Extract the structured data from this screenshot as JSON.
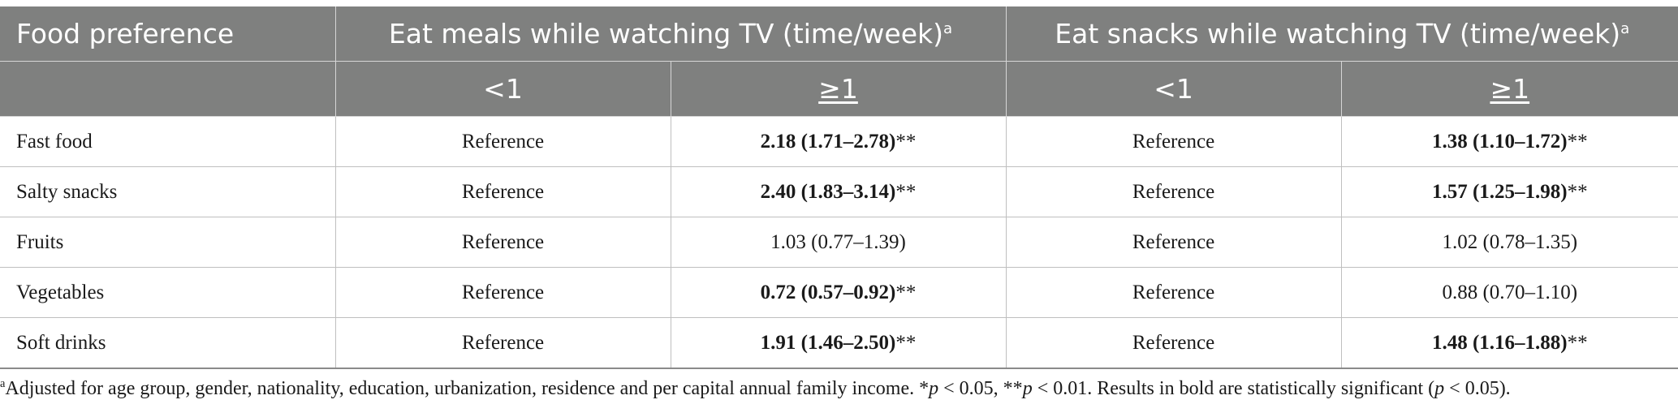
{
  "header": {
    "col0": "Food preference",
    "group1": "Eat meals while watching TV (time/week)",
    "group2": "Eat snacks while watching TV (time/week)",
    "group_sup": "a",
    "sub_lt": "<1",
    "sub_ge": "≥1"
  },
  "rows": [
    {
      "label": "Fast food",
      "meals_lt": "Reference",
      "meals_ge": {
        "value": "2.18 (1.71–2.78)",
        "stars": "**",
        "bold": true
      },
      "snacks_lt": "Reference",
      "snacks_ge": {
        "value": "1.38 (1.10–1.72)",
        "stars": "**",
        "bold": true
      }
    },
    {
      "label": "Salty snacks",
      "meals_lt": "Reference",
      "meals_ge": {
        "value": "2.40 (1.83–3.14)",
        "stars": "**",
        "bold": true
      },
      "snacks_lt": "Reference",
      "snacks_ge": {
        "value": "1.57 (1.25–1.98)",
        "stars": "**",
        "bold": true
      }
    },
    {
      "label": "Fruits",
      "meals_lt": "Reference",
      "meals_ge": {
        "value": "1.03 (0.77–1.39)",
        "stars": "",
        "bold": false
      },
      "snacks_lt": "Reference",
      "snacks_ge": {
        "value": "1.02 (0.78–1.35)",
        "stars": "",
        "bold": false
      }
    },
    {
      "label": "Vegetables",
      "meals_lt": "Reference",
      "meals_ge": {
        "value": "0.72 (0.57–0.92)",
        "stars": "**",
        "bold": true
      },
      "snacks_lt": "Reference",
      "snacks_ge": {
        "value": "0.88 (0.70–1.10)",
        "stars": "",
        "bold": false
      }
    },
    {
      "label": "Soft drinks",
      "meals_lt": "Reference",
      "meals_ge": {
        "value": "1.91 (1.46–2.50)",
        "stars": "**",
        "bold": true
      },
      "snacks_lt": "Reference",
      "snacks_ge": {
        "value": "1.48 (1.16–1.88)",
        "stars": "**",
        "bold": true
      }
    }
  ],
  "footnote": {
    "marker": "a",
    "text1": "Adjusted for age group, gender, nationality, education, urbanization, residence and per capital annual family income. *",
    "p": "p",
    "text2": " < 0.05, **",
    "text3": " < 0.01. Results in bold are statistically significant (",
    "text4": " < 0.05)."
  },
  "colors": {
    "header_bg": "#7f807f",
    "header_text": "#ffffff",
    "body_text": "#1a1a1a",
    "rule": "#bfbfbf"
  }
}
